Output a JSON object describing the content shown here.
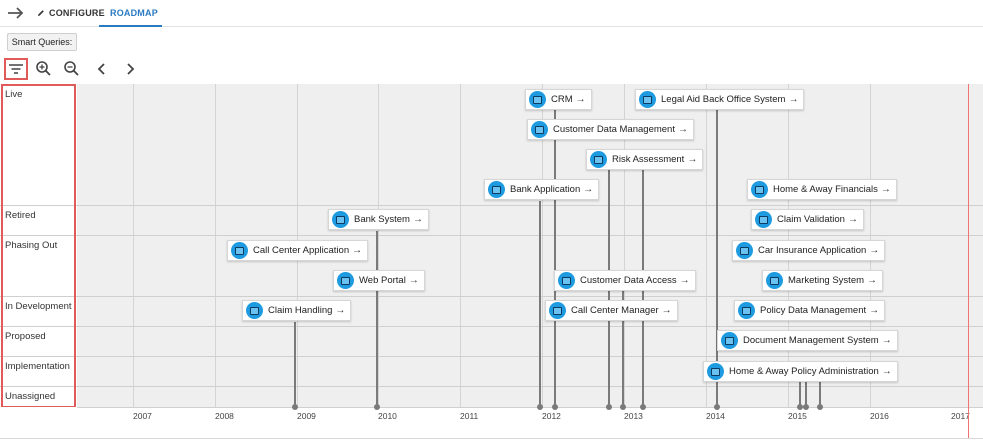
{
  "nav": {
    "configure_label": "CONFIGURE",
    "roadmap_label": "ROADMAP"
  },
  "toolbar": {
    "smart_queries_label": "Smart Queries:",
    "tools": [
      "filter-icon",
      "zoom-in-icon",
      "zoom-out-icon",
      "chevron-left-icon",
      "chevron-right-icon"
    ]
  },
  "lanes": [
    "Live",
    "Retired",
    "Phasing Out",
    "In Development",
    "Proposed",
    "Implementation",
    "Unassigned"
  ],
  "years": [
    "2007",
    "2008",
    "2009",
    "2010",
    "2011",
    "2012",
    "2013",
    "2014",
    "2015",
    "2016",
    "2017"
  ],
  "cards": {
    "crm": "CRM",
    "legal_aid": "Legal Aid Back Office System",
    "customer_data_management": "Customer Data Management",
    "risk_assessment": "Risk Assessment",
    "bank_application": "Bank Application",
    "home_away_financials": "Home & Away Financials",
    "bank_system": "Bank System",
    "claim_validation": "Claim Validation",
    "call_center_application": "Call Center Application",
    "car_insurance_application": "Car Insurance Application",
    "web_portal": "Web Portal",
    "customer_data_access": "Customer Data Access",
    "marketing_system": "Marketing System",
    "claim_handling": "Claim Handling",
    "call_center_manager": "Call Center Manager",
    "policy_data_management": "Policy Data Management",
    "document_management_system": "Document Management System",
    "home_away_policy_admin": "Home & Away Policy Administration"
  },
  "arrow_glyph": "→",
  "colors": {
    "accent": "#2a7ac2",
    "highlight": "#e05a5a",
    "today_line": "#f07272",
    "app_icon": "#1e9be0"
  }
}
